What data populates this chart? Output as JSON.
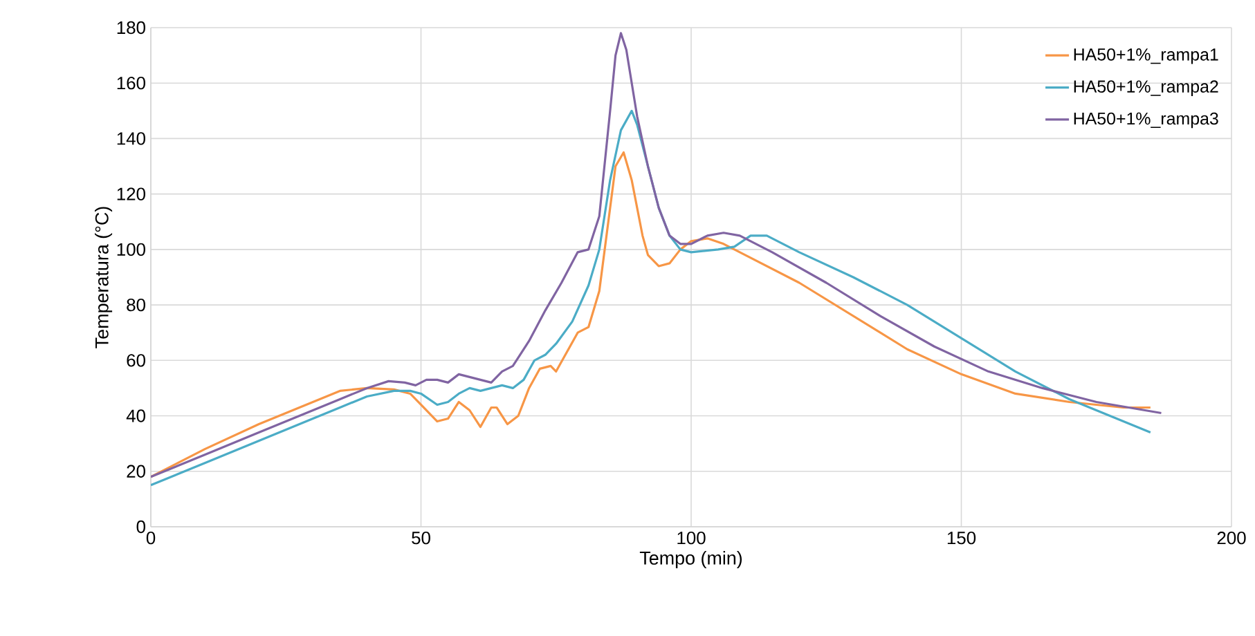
{
  "chart_data": {
    "type": "line",
    "xlabel": "Tempo (min)",
    "ylabel": "Temperatura (°C)",
    "xlim": [
      0,
      200
    ],
    "ylim": [
      0,
      180
    ],
    "xticks": [
      0,
      50,
      100,
      150,
      200
    ],
    "yticks": [
      0,
      20,
      40,
      60,
      80,
      100,
      120,
      140,
      160,
      180
    ],
    "grid": true,
    "legend": "top right",
    "marker": "none",
    "line_style": "solid",
    "series": [
      {
        "name": "HA50+1%_rampa1",
        "color": "#f79646",
        "x": [
          0,
          10,
          20,
          30,
          35,
          40,
          45,
          48,
          50,
          53,
          55,
          57,
          59,
          61,
          63,
          64,
          66,
          68,
          70,
          72,
          74,
          75,
          77,
          79,
          81,
          83,
          85,
          86,
          87.5,
          89,
          91,
          92,
          94,
          96,
          98,
          100,
          103,
          106,
          110,
          120,
          130,
          140,
          150,
          160,
          170,
          180,
          185
        ],
        "values": [
          18,
          28,
          37,
          45,
          49,
          50,
          49.5,
          48,
          44,
          38,
          39,
          45,
          42,
          36,
          43,
          43,
          37,
          40,
          50,
          57,
          58,
          56,
          63,
          70,
          72,
          85,
          115,
          130,
          135,
          125,
          105,
          98,
          94,
          95,
          100,
          103,
          104,
          102,
          98,
          88,
          76,
          64,
          55,
          48,
          45,
          43,
          43
        ]
      },
      {
        "name": "HA50+1%_rampa2",
        "color": "#4bacc6",
        "x": [
          0,
          10,
          20,
          30,
          35,
          40,
          45,
          48,
          50,
          53,
          55,
          57,
          59,
          61,
          63,
          65,
          67,
          69,
          71,
          73,
          75,
          78,
          81,
          83,
          85,
          87,
          89,
          90,
          92,
          94,
          96,
          98,
          100,
          105,
          108,
          111,
          114,
          120,
          130,
          140,
          150,
          160,
          170,
          180,
          185
        ],
        "values": [
          15,
          23,
          31,
          39,
          43,
          47,
          49,
          49,
          48,
          44,
          45,
          48,
          50,
          49,
          50,
          51,
          50,
          53,
          60,
          62,
          66,
          74,
          87,
          100,
          125,
          143,
          150,
          145,
          130,
          115,
          105,
          100,
          99,
          100,
          101,
          105,
          105,
          99,
          90,
          80,
          68,
          56,
          46,
          38,
          34
        ]
      },
      {
        "name": "HA50+1%_rampa3",
        "color": "#8064a2",
        "x": [
          0,
          10,
          20,
          30,
          35,
          40,
          44,
          47,
          49,
          51,
          53,
          55,
          57,
          59,
          61,
          63,
          65,
          67,
          70,
          73,
          76,
          79,
          81,
          83,
          85,
          86,
          87,
          88,
          90,
          92,
          94,
          96,
          98,
          100,
          103,
          106,
          109,
          115,
          125,
          135,
          145,
          155,
          165,
          175,
          187
        ],
        "values": [
          18,
          26,
          34,
          42,
          46,
          50,
          52.5,
          52,
          51,
          53,
          53,
          52,
          55,
          54,
          53,
          52,
          56,
          58,
          67,
          78,
          88,
          99,
          100,
          112,
          150,
          170,
          178,
          172,
          148,
          130,
          115,
          105,
          102,
          102,
          105,
          106,
          105,
          99,
          88,
          76,
          65,
          56,
          50,
          45,
          41
        ]
      }
    ]
  }
}
